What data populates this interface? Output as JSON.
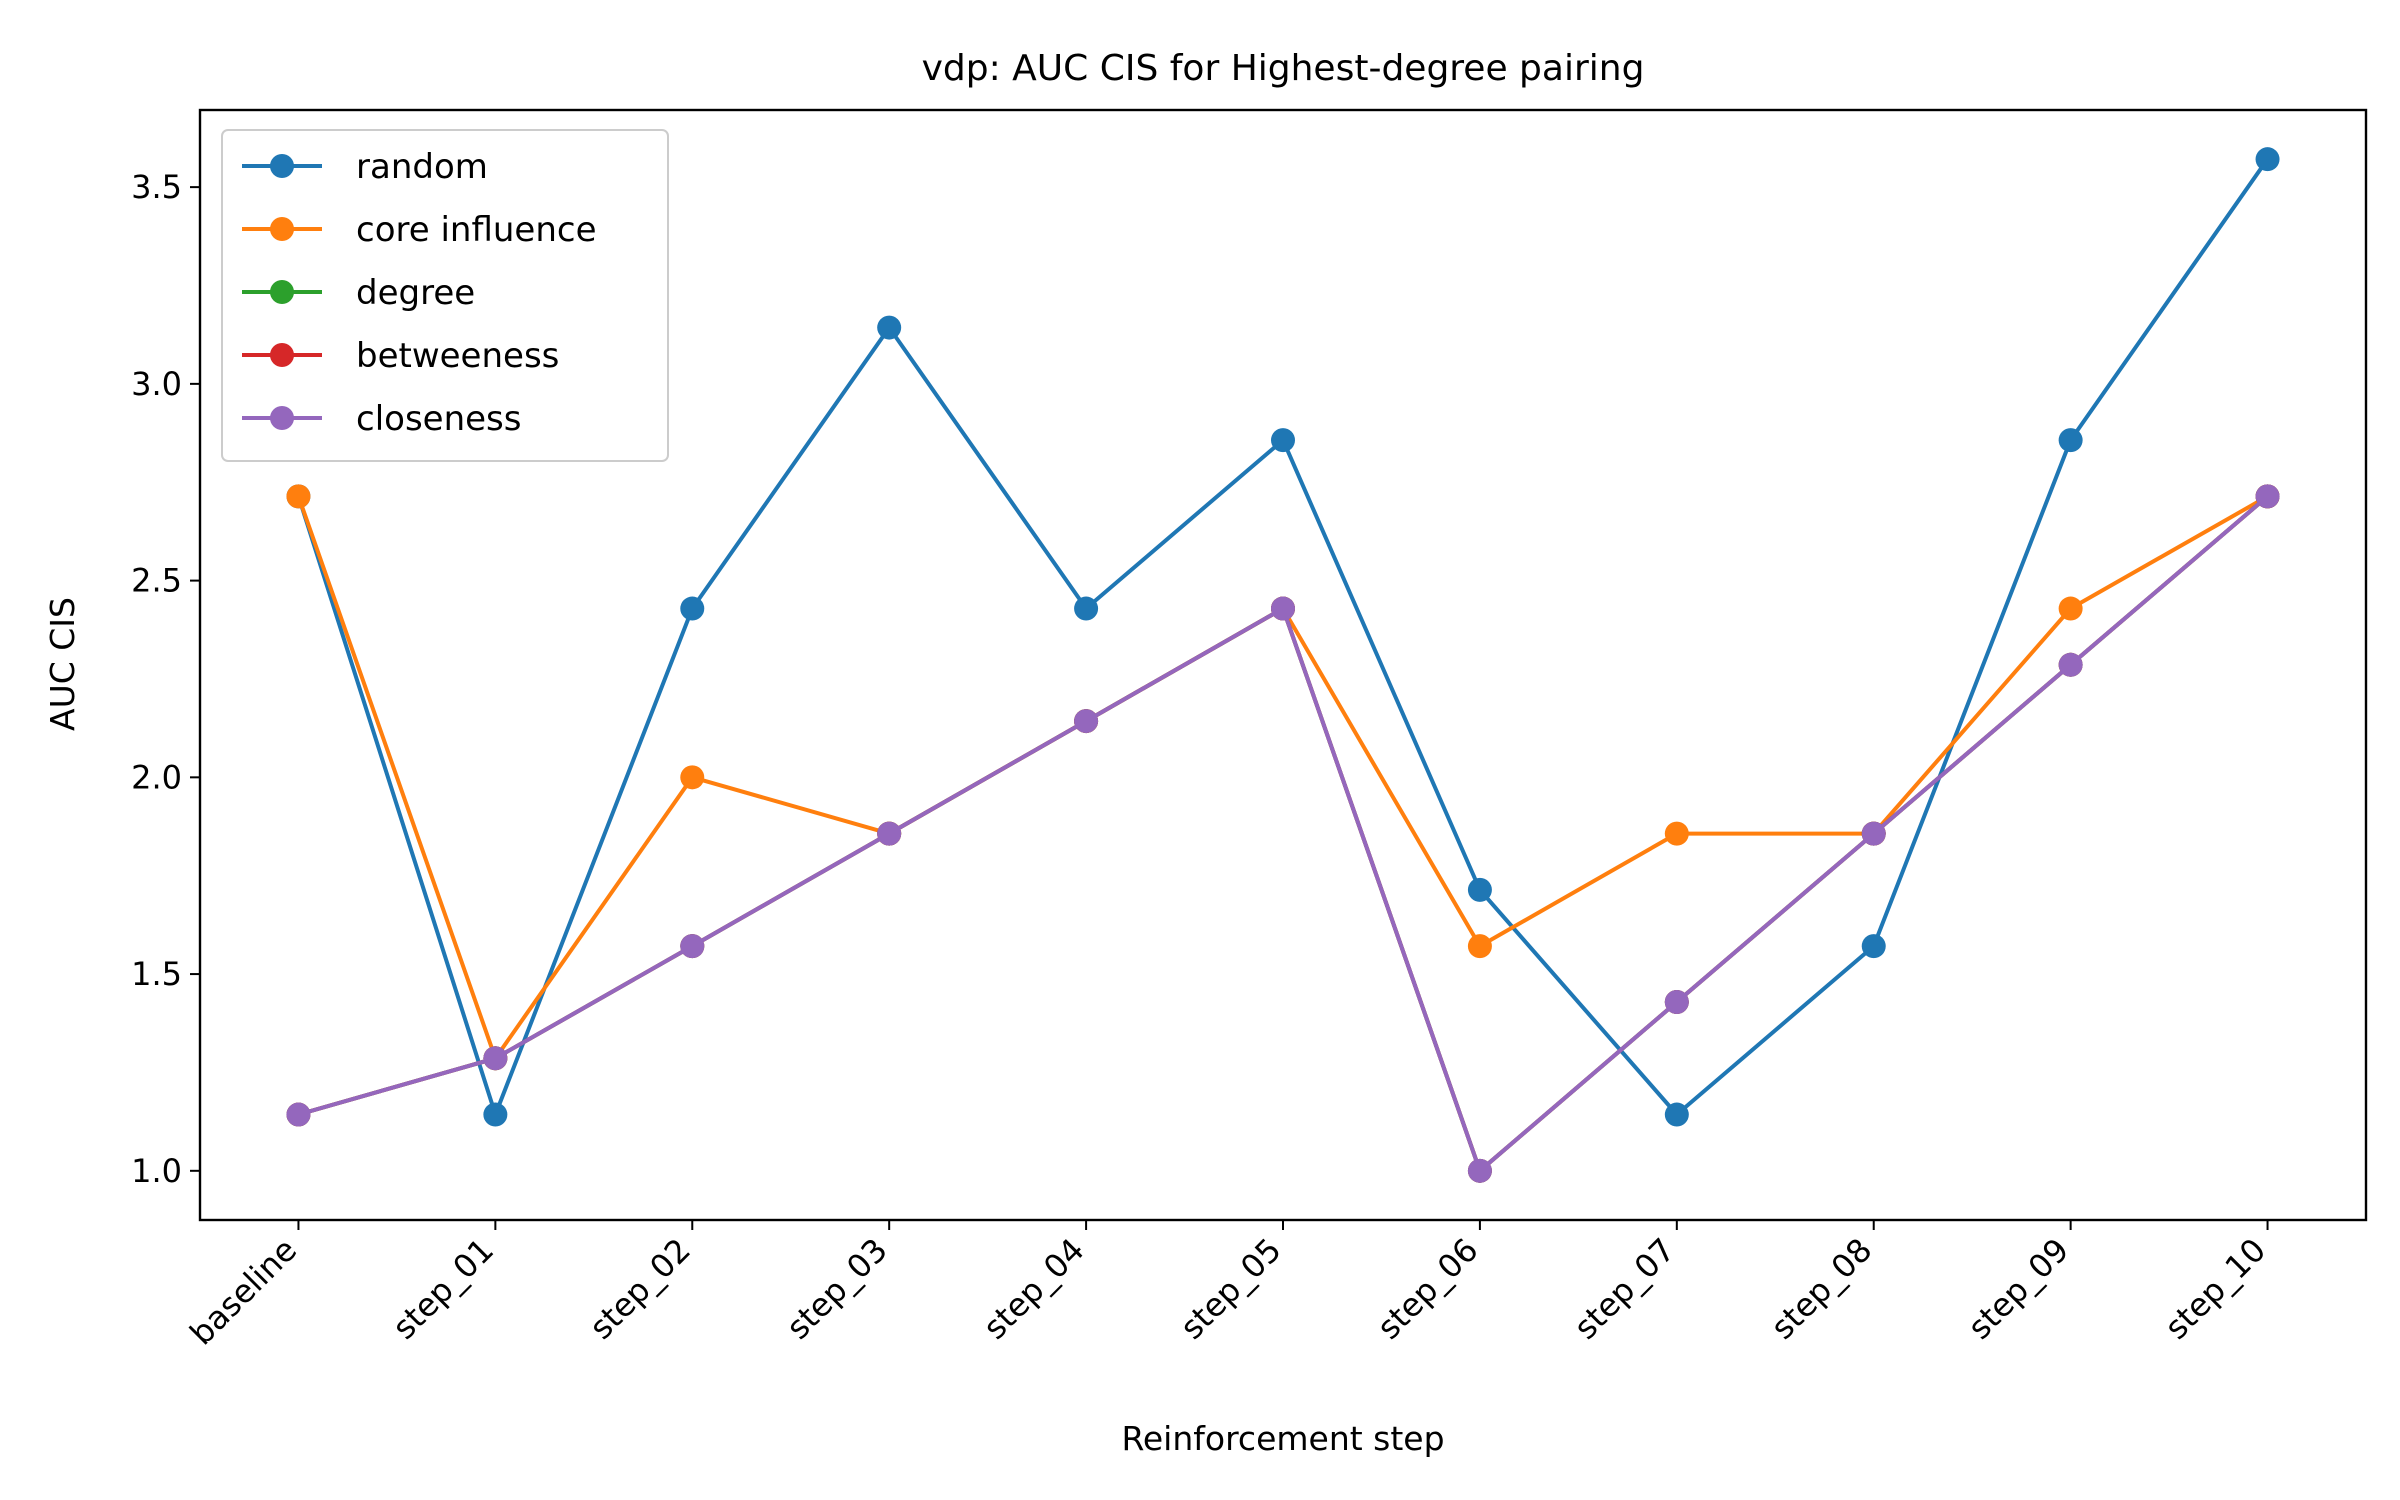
{
  "chart_data": {
    "type": "line",
    "title": "vdp: AUC CIS for Highest-degree pairing",
    "xlabel": "Reinforcement step",
    "ylabel": "AUC CIS",
    "categories": [
      "baseline",
      "step_01",
      "step_02",
      "step_03",
      "step_04",
      "step_05",
      "step_06",
      "step_07",
      "step_08",
      "step_09",
      "step_10"
    ],
    "ylim": [
      0.875,
      3.696
    ],
    "yticks": [
      1.0,
      1.5,
      2.0,
      2.5,
      3.0,
      3.5
    ],
    "ytick_labels": [
      "1.0",
      "1.5",
      "2.0",
      "2.5",
      "3.0",
      "3.5"
    ],
    "grid": false,
    "legend_position": "top-left",
    "series": [
      {
        "name": "random",
        "color": "#1f77b4",
        "values": [
          2.714,
          1.143,
          2.429,
          3.143,
          2.429,
          2.857,
          1.714,
          1.143,
          1.571,
          2.857,
          3.571
        ]
      },
      {
        "name": "core influence",
        "color": "#ff7f0e",
        "values": [
          2.714,
          1.286,
          2.0,
          1.857,
          2.143,
          2.429,
          1.571,
          1.857,
          1.857,
          2.429,
          2.714
        ]
      },
      {
        "name": "degree",
        "color": "#2ca02c",
        "values": [
          1.143,
          1.286,
          1.571,
          1.857,
          2.143,
          2.429,
          1.0,
          1.429,
          1.857,
          2.286,
          2.714
        ]
      },
      {
        "name": "betweeness",
        "color": "#d62728",
        "values": [
          1.143,
          1.286,
          1.571,
          1.857,
          2.143,
          2.429,
          1.0,
          1.429,
          1.857,
          2.286,
          2.714
        ]
      },
      {
        "name": "closeness",
        "color": "#9467bd",
        "values": [
          1.143,
          1.286,
          1.571,
          1.857,
          2.143,
          2.429,
          1.0,
          1.429,
          1.857,
          2.286,
          2.714
        ]
      }
    ]
  }
}
